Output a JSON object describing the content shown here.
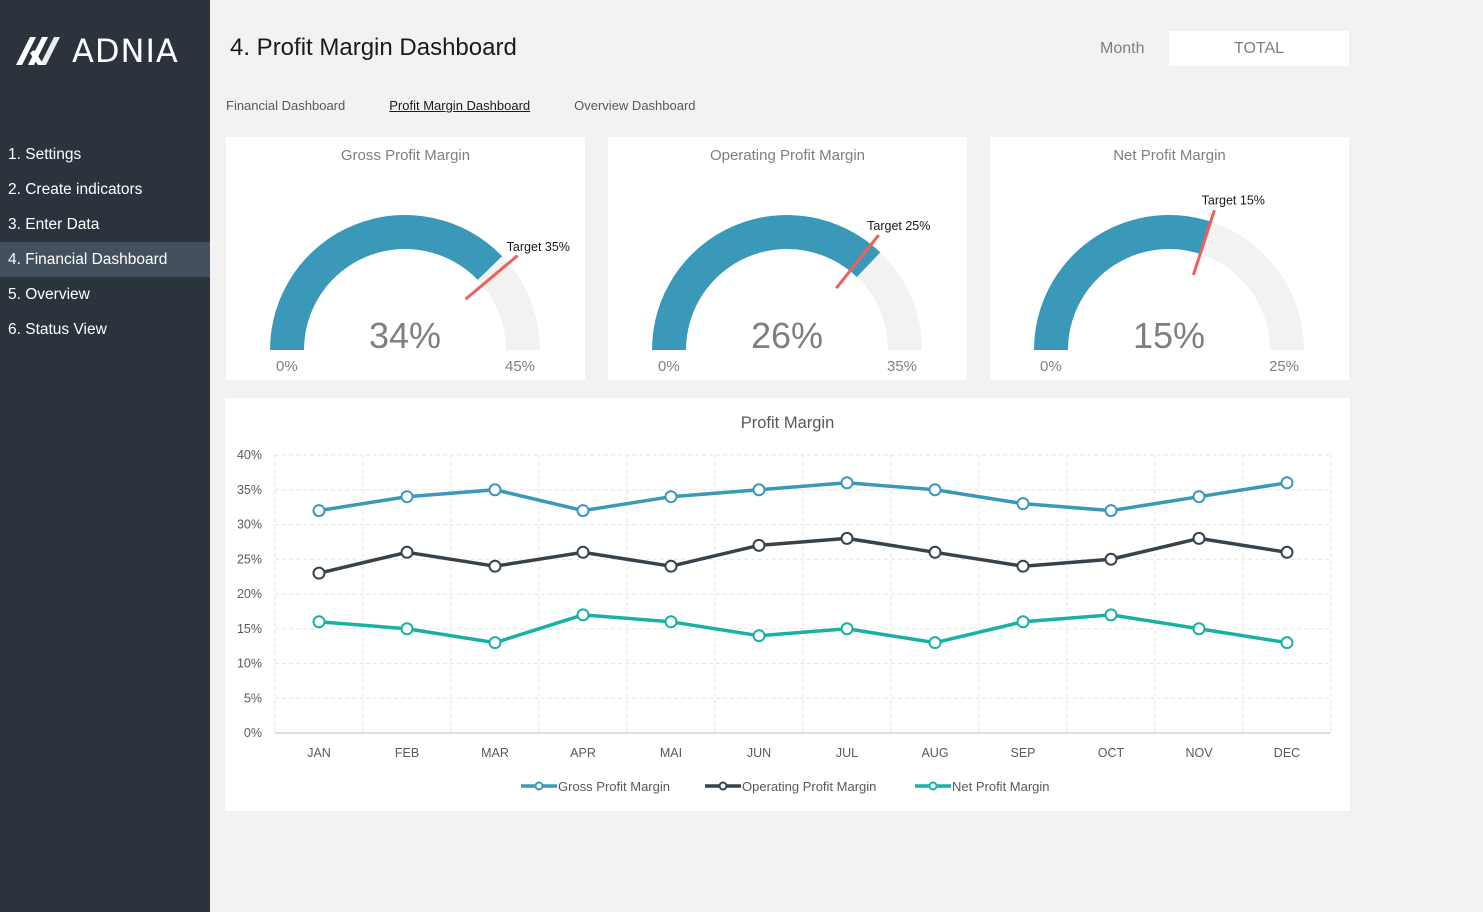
{
  "brand": {
    "name": "ADNIA"
  },
  "sidebar": {
    "items": [
      {
        "label": "1. Settings"
      },
      {
        "label": "2. Create indicators"
      },
      {
        "label": "3. Enter Data"
      },
      {
        "label": "4. Financial Dashboard"
      },
      {
        "label": "5. Overview"
      },
      {
        "label": "6. Status View"
      }
    ],
    "active_index": 3
  },
  "header": {
    "title": "4. Profit Margin Dashboard",
    "month_label": "Month",
    "month_value": "TOTAL"
  },
  "tabs": [
    {
      "label": "Financial Dashboard"
    },
    {
      "label": "Profit Margin Dashboard"
    },
    {
      "label": "Overview Dashboard"
    }
  ],
  "colors": {
    "sidebar_bg": "#2b333d",
    "sidebar_active": "#44505e",
    "gross": "#3a98b9",
    "operating": "#37424a",
    "net": "#19b1a4",
    "target": "#f0605a",
    "gauge_track": "#f2f2f2"
  },
  "gauges": [
    {
      "title": "Gross Profit Margin",
      "value": 34,
      "display": "34%",
      "max": 45,
      "min_label": "0%",
      "max_label": "45%",
      "target": 35,
      "target_label": "Target 35%"
    },
    {
      "title": "Operating Profit Margin",
      "value": 26,
      "display": "26%",
      "max": 35,
      "min_label": "0%",
      "max_label": "35%",
      "target": 25,
      "target_label": "Target 25%"
    },
    {
      "title": "Net Profit Margin",
      "value": 15,
      "display": "15%",
      "max": 25,
      "min_label": "0%",
      "max_label": "25%",
      "target": 15,
      "target_label": "Target 15%"
    }
  ],
  "chart_data": {
    "type": "line",
    "title": "Profit Margin",
    "categories": [
      "JAN",
      "FEB",
      "MAR",
      "APR",
      "MAI",
      "JUN",
      "JUL",
      "AUG",
      "SEP",
      "OCT",
      "NOV",
      "DEC"
    ],
    "ylim": [
      0,
      40
    ],
    "yticks": [
      "0%",
      "5%",
      "10%",
      "15%",
      "20%",
      "25%",
      "30%",
      "35%",
      "40%"
    ],
    "legend_position": "bottom",
    "series": [
      {
        "name": "Gross Profit Margin",
        "values": [
          32,
          34,
          35,
          32,
          34,
          35,
          36,
          35,
          33,
          32,
          34,
          36
        ]
      },
      {
        "name": "Operating Profit Margin",
        "values": [
          23,
          26,
          24,
          26,
          24,
          27,
          28,
          26,
          24,
          25,
          28,
          26
        ]
      },
      {
        "name": "Net Profit Margin",
        "values": [
          16,
          15,
          13,
          17,
          16,
          14,
          15,
          13,
          16,
          17,
          15,
          13
        ]
      }
    ]
  }
}
